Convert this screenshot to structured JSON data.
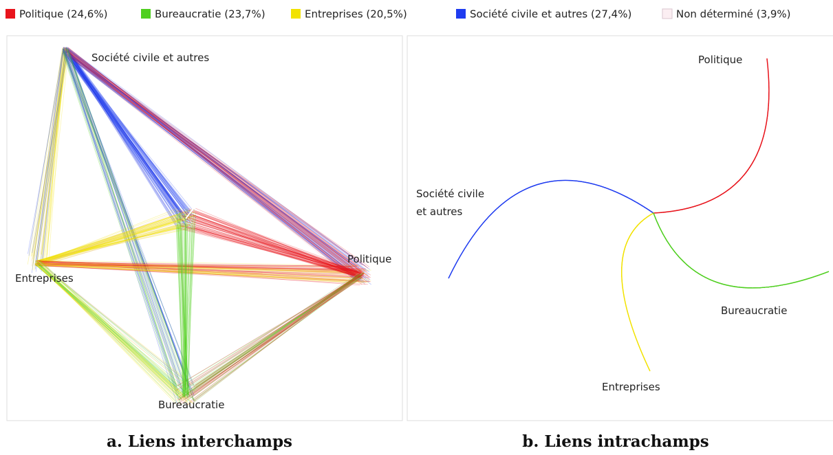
{
  "legend": [
    {
      "label": "Politique (24,6%)",
      "color": "#e8141c"
    },
    {
      "label": "Bureaucratie (23,7%)",
      "color": "#4fcf1f"
    },
    {
      "label": "Entreprises (20,5%)",
      "color": "#f2e200"
    },
    {
      "label": "Société civile et autres (27,4%)",
      "color": "#1f3cf0"
    },
    {
      "label": "Non déterminé (3,9%)",
      "color": "#fbeef2"
    }
  ],
  "panels": [
    {
      "caption": "a. Liens interchamps",
      "nodes": {
        "societe": "Société civile et autres",
        "entreprises": "Entreprises",
        "politique": "Politique",
        "bureaucratie": "Bureaucratie"
      }
    },
    {
      "caption": "b. Liens intrachamps",
      "nodes": {
        "politique": "Politique",
        "societe": [
          "Société civile",
          "et autres"
        ],
        "bureaucratie": "Bureaucratie",
        "entreprises": "Entreprises"
      }
    }
  ]
}
